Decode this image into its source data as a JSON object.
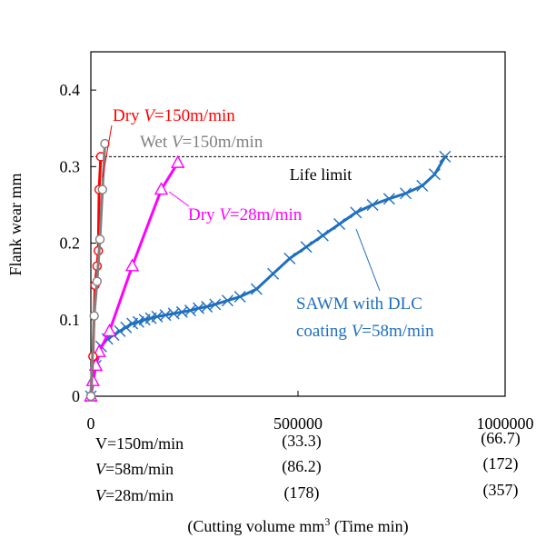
{
  "chart_data": {
    "type": "line",
    "xlabel_prefix": "(Cutting volume mm",
    "xlabel_sup": "3",
    "xlabel_suffix": " (Time min)",
    "ylabel": "Flank wear mm",
    "xlim": [
      0,
      1000000
    ],
    "ylim": [
      0,
      0.45
    ],
    "grid": false,
    "x_ticks": [
      {
        "value": 0,
        "label": "0"
      },
      {
        "value": 500000,
        "label": "500000"
      },
      {
        "value": 1000000,
        "label": "1000000"
      }
    ],
    "y_ticks": [
      {
        "value": 0,
        "label": "0"
      },
      {
        "value": 0.1,
        "label": "0.1"
      },
      {
        "value": 0.2,
        "label": "0.2"
      },
      {
        "value": 0.3,
        "label": "0.3"
      },
      {
        "value": 0.4,
        "label": "0.4"
      }
    ],
    "time_rows": [
      {
        "label_pre": "V",
        "label_post": "=150m/min",
        "italic": false,
        "mid": "(33.3)",
        "end": "(66.7)"
      },
      {
        "label_pre": "V",
        "label_post": "=58m/min",
        "italic": true,
        "mid": "(86.2)",
        "end": "(172)"
      },
      {
        "label_pre": "V",
        "label_post": "=28m/min",
        "italic": true,
        "mid": "(178)",
        "end": "(357)"
      }
    ],
    "life_limit": {
      "value": 0.313,
      "label": "Life limit"
    },
    "series": [
      {
        "id": "dry150",
        "label_pre": "Dry ",
        "label_v": "V",
        "label_post": "=150m/min",
        "color": "#ff0000",
        "marker": "circle",
        "x": [
          0,
          5000,
          10000,
          15000,
          18000,
          20000,
          24000
        ],
        "y": [
          0,
          0.052,
          0.145,
          0.17,
          0.19,
          0.27,
          0.313
        ]
      },
      {
        "id": "wet150",
        "label_pre": "Wet ",
        "label_v": "V",
        "label_post": "=150m/min",
        "color": "#808080",
        "marker": "circle",
        "x": [
          0,
          8000,
          15000,
          22000,
          28000,
          34000
        ],
        "y": [
          0,
          0.105,
          0.15,
          0.205,
          0.27,
          0.33
        ]
      },
      {
        "id": "dry28",
        "label_pre": "Dry ",
        "label_v": "V",
        "label_post": "=28m/min",
        "color": "#ff00ff",
        "marker": "triangle",
        "x": [
          0,
          5000,
          12000,
          20000,
          45000,
          100000,
          170000,
          210000
        ],
        "y": [
          0,
          0.02,
          0.04,
          0.058,
          0.085,
          0.17,
          0.27,
          0.305
        ]
      },
      {
        "id": "sawm58",
        "label_line1": "SAWM with DLC",
        "label_line2_pre": "coating ",
        "label_v": "V",
        "label_post": "=58m/min",
        "color": "#1f6fbf",
        "marker": "x",
        "x": [
          0,
          12000,
          25000,
          40000,
          55000,
          70000,
          85000,
          100000,
          115000,
          130000,
          145000,
          160000,
          180000,
          200000,
          220000,
          240000,
          260000,
          280000,
          300000,
          330000,
          360000,
          400000,
          440000,
          480000,
          520000,
          560000,
          600000,
          640000,
          680000,
          720000,
          760000,
          800000,
          830000,
          855000
        ],
        "y": [
          0,
          0.04,
          0.065,
          0.075,
          0.08,
          0.085,
          0.09,
          0.095,
          0.097,
          0.1,
          0.102,
          0.104,
          0.106,
          0.108,
          0.11,
          0.112,
          0.115,
          0.117,
          0.12,
          0.125,
          0.13,
          0.14,
          0.16,
          0.18,
          0.195,
          0.21,
          0.225,
          0.24,
          0.25,
          0.258,
          0.265,
          0.275,
          0.29,
          0.313
        ]
      }
    ]
  }
}
